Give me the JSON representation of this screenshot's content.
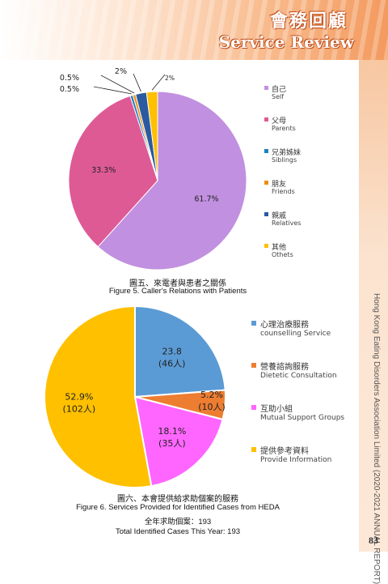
{
  "header": {
    "title_zh": "會務回顧",
    "title_en": "Service Review"
  },
  "side_label": "Hong Kong Eating Disorders Association Limited (2020-2021 ANNUAL REPORT)",
  "page_number": "83",
  "colors": {
    "header_orange": "#f39a5f"
  },
  "chart_data": [
    {
      "type": "pie",
      "slices": [
        {
          "zh": "自己",
          "en": "Self",
          "value": 61.7,
          "label": "61.7%",
          "color": "#c190e0"
        },
        {
          "zh": "父母",
          "en": "Parents",
          "value": 33.3,
          "label": "33.3%",
          "color": "#de5a95"
        },
        {
          "zh": "兄弟姊妹",
          "en": "Siblings",
          "value": 0.5,
          "label": "0.5%",
          "color": "#1f7fc4"
        },
        {
          "zh": "朋友",
          "en": "Friends",
          "value": 0.5,
          "label": "0.5%",
          "color": "#ef8f12"
        },
        {
          "zh": "親戚",
          "en": "Relatives",
          "value": 2,
          "label": "2%",
          "color": "#2b5aa0"
        },
        {
          "zh": "其他",
          "en": "Othets",
          "value": 2,
          "label": "2%",
          "color": "#ffc000"
        }
      ],
      "caption_zh": "圖五、來電者與患者之關係",
      "caption_en": "Figure 5. Caller's Relations with Patients",
      "legend_position": "right"
    },
    {
      "type": "pie",
      "slices": [
        {
          "zh": "心理治療服務",
          "en": "counselling Service",
          "value": 23.8,
          "label": "23.8",
          "label2": "(46人)",
          "color": "#5b9bd5"
        },
        {
          "zh": "營養諮詢服務",
          "en": "Dietetic Consultation",
          "value": 5.2,
          "label": "5.2%",
          "label2": "(10人)",
          "color": "#ed7d31"
        },
        {
          "zh": "互助小組",
          "en": "Mutual Support Groups",
          "value": 18.1,
          "label": "18.1%",
          "label2": "(35人)",
          "color": "#ff66ff"
        },
        {
          "zh": "提供參考資料",
          "en": "Provide Information",
          "value": 52.9,
          "label": "52.9%",
          "label2": "(102人)",
          "color": "#ffc000"
        }
      ],
      "caption_zh": "圖六、本會提供給求助個案的服務",
      "caption_en": "Figure 6. Services Provided for Identified Cases from HEDA",
      "total_zh": "全年求助個案：193",
      "total_en": "Total Identified Cases This Year: 193",
      "legend_position": "right"
    }
  ]
}
